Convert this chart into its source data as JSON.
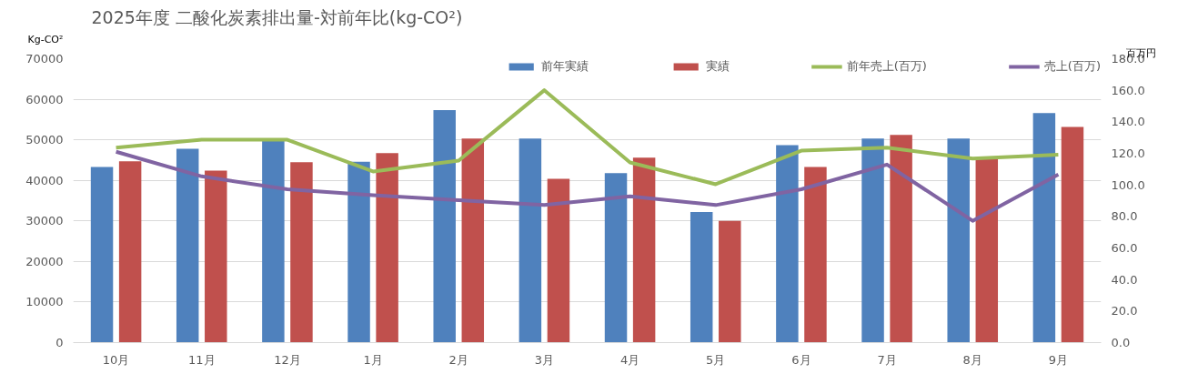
{
  "chart_data": {
    "type": "bar",
    "title": "2025年度 二酸化炭素排出量-対前年比(kg-CO²)",
    "ylabel": "Kg-CO²",
    "y2label": "百万円",
    "categories": [
      "10月",
      "11月",
      "12月",
      "1月",
      "2月",
      "3月",
      "4月",
      "5月",
      "6月",
      "7月",
      "8月",
      "9月"
    ],
    "series": [
      {
        "name": "前年実績",
        "color": "#4f81bd",
        "values": [
          43300,
          47800,
          49800,
          44600,
          57300,
          50300,
          41800,
          32200,
          48700,
          50300,
          50300,
          56600
        ]
      },
      {
        "name": "実績",
        "color": "#c0504d",
        "values": [
          44700,
          42400,
          44500,
          46700,
          50300,
          40400,
          45600,
          30000,
          43300,
          51200,
          45500,
          53200
        ]
      },
      {
        "name": "前年売上(百万)",
        "type": "line",
        "axis": "y2",
        "color": "#9bbb59",
        "values": [
          123.6,
          128.6,
          128.6,
          108.5,
          115.4,
          160.0,
          114.2,
          100.4,
          121.7,
          123.6,
          116.7,
          119.2
        ]
      },
      {
        "name": "売上(百万)",
        "type": "line",
        "axis": "y2",
        "color": "#8064a2",
        "values": [
          121.0,
          105.4,
          97.2,
          93.5,
          90.3,
          87.2,
          92.8,
          87.2,
          97.2,
          112.9,
          77.2,
          106.6
        ]
      }
    ],
    "ylim": [
      0,
      70000
    ],
    "yticks": [
      0,
      10000,
      20000,
      30000,
      40000,
      50000,
      60000,
      70000
    ],
    "y2lim": [
      0,
      180
    ],
    "y2ticks": [
      {
        "value": 0,
        "label": "0.0"
      },
      {
        "value": 20,
        "label": "20.0"
      },
      {
        "value": 40,
        "label": "40.0"
      },
      {
        "value": 60,
        "label": "60.0"
      },
      {
        "value": 80,
        "label": "80.0"
      },
      {
        "value": 100,
        "label": "100.0"
      },
      {
        "value": 120,
        "label": "120.0"
      },
      {
        "value": 140,
        "label": "140.0"
      },
      {
        "value": 160,
        "label": "160.0"
      },
      {
        "value": 180,
        "label": "180.0"
      }
    ],
    "grid": "y",
    "legend": "top",
    "marker": "none",
    "line_style": "solid"
  }
}
